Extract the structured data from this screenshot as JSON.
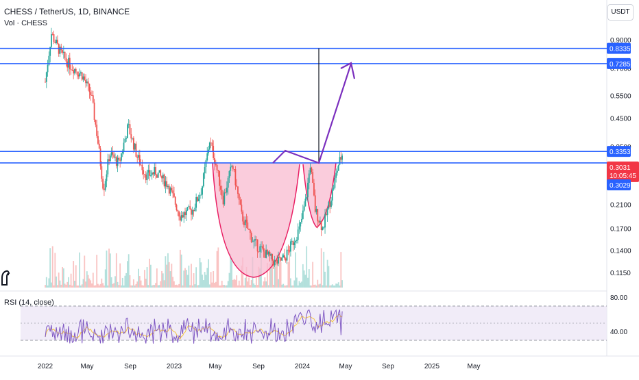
{
  "header": {
    "symbol_line": "CHESS / TetherUS, 1D, BINANCE",
    "volume_label": "Vol · CHESS",
    "currency": "USDT"
  },
  "rsi": {
    "label": "RSI (14, close)",
    "levels": [
      "80.00",
      "40.00"
    ]
  },
  "colors": {
    "up": "#26a69a",
    "down": "#ef5350",
    "level_line": "#2962ff",
    "annotation": "#7b2fbe",
    "cup_fill": "#f8bbd0",
    "cup_stroke": "#e91e63",
    "rsi_line": "#7e57c2",
    "rsi_ma": "#f5c542",
    "rsi_band": "#ede7f6",
    "price_tag": "#f23645"
  },
  "chart_data": {
    "type": "candlestick",
    "scale": "log",
    "x_tick_labels": [
      "2022",
      "May",
      "Sep",
      "2023",
      "May",
      "Sep",
      "2024",
      "May",
      "Sep",
      "2025",
      "May"
    ],
    "y_tick_labels": [
      "0.9000",
      "0.7000",
      "0.5500",
      "0.4500",
      "0.3500",
      "0.2100",
      "0.1700",
      "0.1400",
      "0.1150"
    ],
    "horizontal_levels": [
      {
        "value": 0.8335,
        "label": "0.8335"
      },
      {
        "value": 0.7285,
        "label": "0.7285"
      },
      {
        "value": 0.3353,
        "label": "0.3353"
      },
      {
        "value": 0.3029,
        "label": "0.3029"
      }
    ],
    "current_price": {
      "value": 0.3031,
      "label": "0.3031",
      "countdown": "10:05:45"
    },
    "pattern": "cup and handle"
  }
}
